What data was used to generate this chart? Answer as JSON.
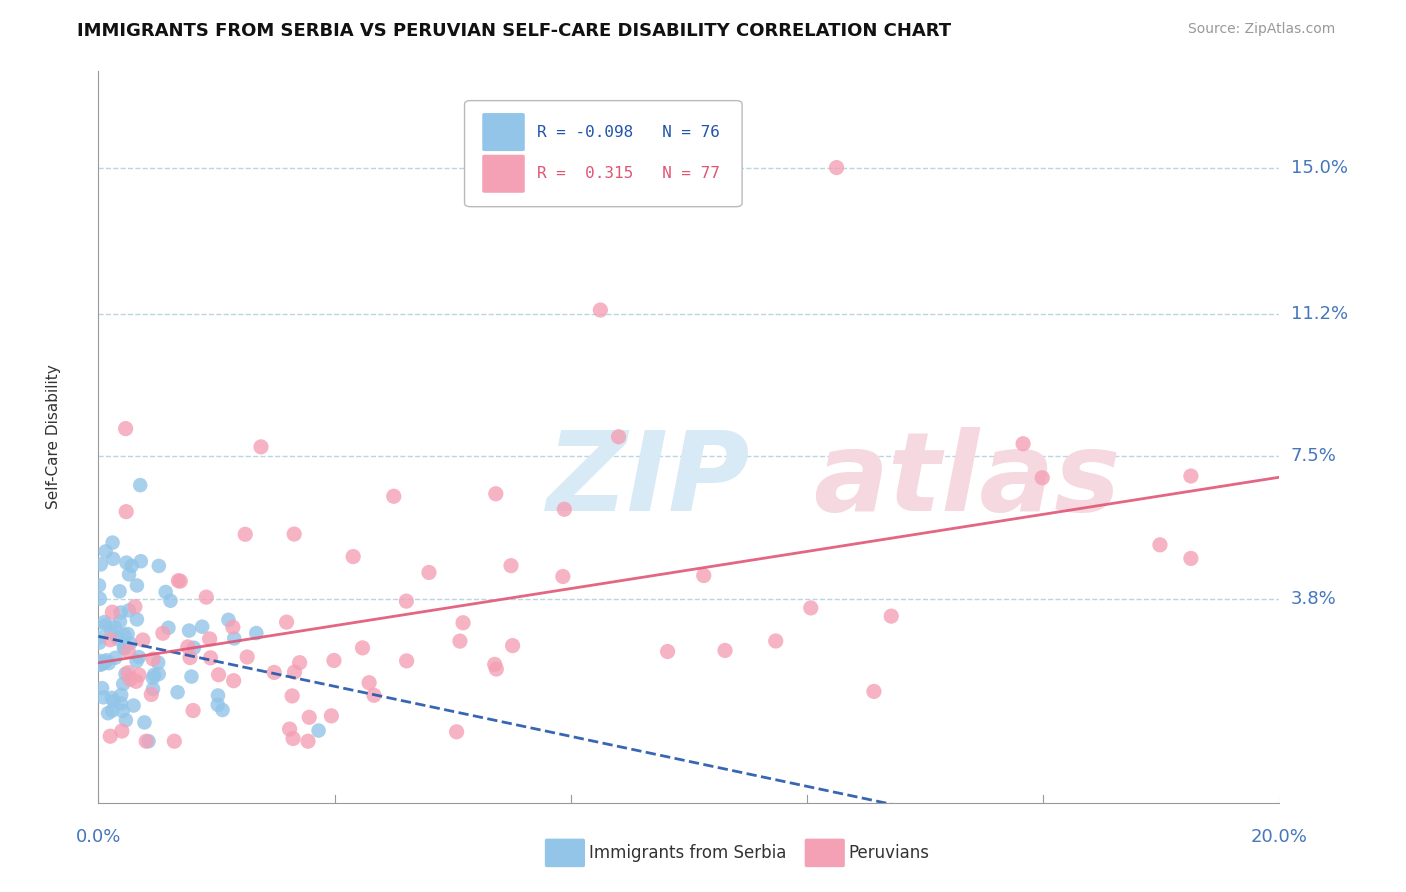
{
  "title": "IMMIGRANTS FROM SERBIA VS PERUVIAN SELF-CARE DISABILITY CORRELATION CHART",
  "source": "Source: ZipAtlas.com",
  "ylabel": "Self-Care Disability",
  "ytick_labels": [
    "15.0%",
    "11.2%",
    "7.5%",
    "3.8%"
  ],
  "ytick_values": [
    0.15,
    0.112,
    0.075,
    0.038
  ],
  "xlim": [
    0.0,
    0.2
  ],
  "ylim": [
    -0.015,
    0.175
  ],
  "serbia_color": "#92C5E8",
  "peru_color": "#F4A0B5",
  "serbia_line_color": "#2255AA",
  "peru_line_color": "#E05575",
  "serbia_R": -0.098,
  "serbia_N": 76,
  "peru_R": 0.315,
  "peru_N": 77,
  "grid_color": "#AACCDD",
  "watermark_color": "#D8EAF5",
  "watermark_color2": "#F5D8E0"
}
